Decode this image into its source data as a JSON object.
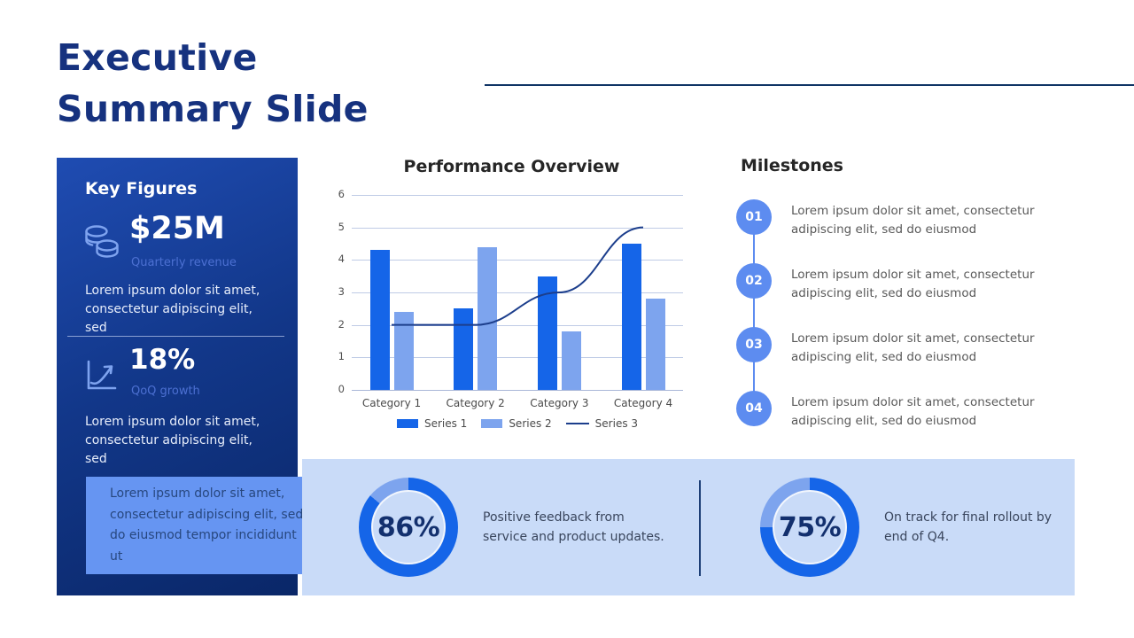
{
  "slide": {
    "title_line1": "Executive",
    "title_line2": "Summary Slide"
  },
  "key_figures": {
    "title": "Key Figures",
    "stats": [
      {
        "icon": "coins-icon",
        "value": "$25M",
        "label": "Quarterly revenue",
        "description": "Lorem ipsum dolor sit amet, consectetur adipiscing elit, sed"
      },
      {
        "icon": "growth-chart-icon",
        "value": "18%",
        "label": "QoQ growth",
        "description": "Lorem ipsum dolor sit amet, consectetur adipiscing elit, sed"
      }
    ],
    "note": "Lorem ipsum dolor sit amet, consectetur adipiscing elit, sed do eiusmod tempor incididunt ut"
  },
  "chart_data": {
    "type": "bar",
    "title": "Performance Overview",
    "categories": [
      "Category 1",
      "Category 2",
      "Category 3",
      "Category 4"
    ],
    "series": [
      {
        "name": "Series 1",
        "kind": "bar",
        "color": "#1565e8",
        "values": [
          4.3,
          2.5,
          3.5,
          4.5
        ]
      },
      {
        "name": "Series 2",
        "kind": "bar",
        "color": "#7da4ee",
        "values": [
          2.4,
          4.4,
          1.8,
          2.8
        ]
      },
      {
        "name": "Series 3",
        "kind": "line",
        "color": "#1c3e8c",
        "values": [
          2,
          2,
          3,
          5
        ]
      }
    ],
    "ylim": [
      0,
      6
    ],
    "yticks": [
      0,
      1,
      2,
      3,
      4,
      5,
      6
    ],
    "grid": true,
    "legend_position": "bottom"
  },
  "milestones": {
    "title": "Milestones",
    "items": [
      {
        "number": "01",
        "text": "Lorem ipsum dolor sit amet, consectetur adipiscing elit, sed do eiusmod"
      },
      {
        "number": "02",
        "text": "Lorem ipsum dolor sit amet, consectetur adipiscing elit, sed do eiusmod"
      },
      {
        "number": "03",
        "text": "Lorem ipsum dolor sit amet, consectetur adipiscing elit, sed do eiusmod"
      },
      {
        "number": "04",
        "text": "Lorem ipsum dolor sit amet, consectetur adipiscing elit, sed do eiusmod"
      }
    ]
  },
  "kpis": [
    {
      "percent_label": "86%",
      "value": 86,
      "text": "Positive feedback from service and product updates."
    },
    {
      "percent_label": "75%",
      "value": 75,
      "text": "On track for final rollout by end of Q4."
    }
  ],
  "colors": {
    "title_navy": "#16327f",
    "top_rule_navy": "#0f3465",
    "panel_gradient_start": "#1f4cb2",
    "panel_gradient_end": "#0a2768",
    "panel_label_blue": "#4c70d2",
    "panel_icon_blue": "#7ea3ef",
    "overlay_box_blue": "#6695f2",
    "overlay_text_navy": "#27477e",
    "bottom_bar_blue": "#c9dbf8",
    "donut_main_blue": "#1565e8",
    "donut_rest_blue": "#7da4ee",
    "kpi_percent_navy": "#13306e",
    "milestone_circle_blue": "#5d8cf0",
    "gridline_blue": "#bfcbe6",
    "series1_blue": "#1565e8",
    "series2_light_blue": "#7da4ee",
    "series3_navy": "#1c3e8c"
  }
}
